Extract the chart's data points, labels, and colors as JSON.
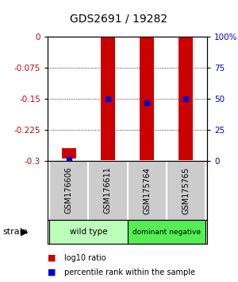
{
  "title": "GDS2691 / 19282",
  "samples": [
    "GSM176606",
    "GSM176611",
    "GSM175764",
    "GSM175765"
  ],
  "log10_ratios": [
    -0.295,
    -0.298,
    -0.298,
    -0.298
  ],
  "bar_tops": [
    -0.27,
    0.0,
    0.0,
    0.0
  ],
  "percentile_ranks": [
    1,
    50,
    47,
    50
  ],
  "ylim_min": -0.3,
  "ylim_max": 0.0,
  "left_ticks": [
    0,
    -0.075,
    -0.15,
    -0.225,
    -0.3
  ],
  "right_ticks": [
    100,
    75,
    50,
    25,
    0
  ],
  "left_tick_labels": [
    "0",
    "-0.075",
    "-0.15",
    "-0.225",
    "-0.3"
  ],
  "right_tick_labels": [
    "100%",
    "75",
    "50",
    "25",
    "0"
  ],
  "groups": [
    {
      "label": "wild type",
      "color": "#bbffbb",
      "cols": [
        0,
        1
      ]
    },
    {
      "label": "dominant negative",
      "color": "#55ee55",
      "cols": [
        2,
        3
      ]
    }
  ],
  "bar_color": "#cc0000",
  "dot_color": "#0000cc",
  "bg_color": "#ffffff",
  "sample_bg_color": "#cccccc",
  "left_label_color": "#cc0000",
  "right_label_color": "#0000cc"
}
